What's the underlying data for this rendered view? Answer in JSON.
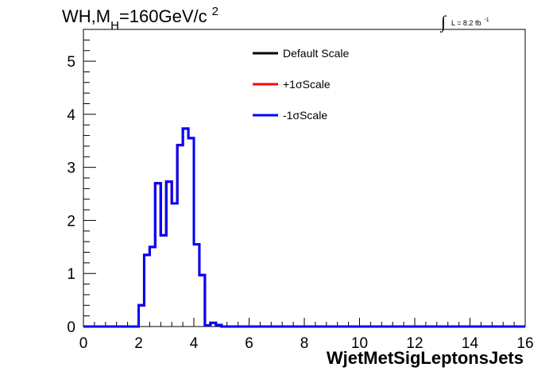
{
  "chart_data": {
    "type": "line",
    "title": {
      "main": "WH,M",
      "sub": "H",
      "rest": "=160GeV/c",
      "sup": "2"
    },
    "lumi_label": {
      "integral": "∫",
      "text": "L = 8.2 fb",
      "sup": "-1"
    },
    "xlabel": "WjetMetSigLeptonsJets",
    "ylabel": "",
    "xlim": [
      0,
      16
    ],
    "ylim": [
      0,
      5.6
    ],
    "x_ticks": [
      0,
      2,
      4,
      6,
      8,
      10,
      12,
      14,
      16
    ],
    "y_ticks": [
      0,
      1,
      2,
      3,
      4,
      5
    ],
    "legend_position": "top-center",
    "bin_edges": [
      0,
      0.2,
      0.4,
      0.6,
      0.8,
      1.0,
      1.2,
      1.4,
      1.6,
      1.8,
      2.0,
      2.2,
      2.4,
      2.6,
      2.8,
      3.0,
      3.2,
      3.4,
      3.6,
      3.8,
      4.0,
      4.2,
      4.4,
      4.6,
      4.8,
      5.0,
      5.2,
      5.4,
      5.6,
      5.8,
      6.0,
      6.2,
      6.4,
      6.6,
      6.8,
      7.0,
      7.2,
      7.4,
      7.6,
      7.8,
      8.0,
      8.2,
      8.4,
      8.6,
      8.8,
      9.0,
      9.2,
      9.4,
      9.6,
      9.8,
      10.0,
      10.2,
      10.4,
      10.6,
      10.8,
      11.0,
      11.2,
      11.4,
      11.6,
      11.8,
      12.0,
      12.2,
      12.4,
      12.6,
      12.8,
      13.0,
      13.2,
      13.4,
      13.6,
      13.8,
      14.0,
      14.2,
      14.4,
      14.6,
      14.8,
      15.0,
      15.2,
      15.4,
      15.6,
      15.8,
      16.0
    ],
    "series": [
      {
        "name": "Default Scale",
        "color": "#000000",
        "values": [
          0,
          0,
          0,
          0,
          0,
          0,
          0,
          0,
          0,
          0,
          0.4,
          1.35,
          1.5,
          2.7,
          1.72,
          2.73,
          2.32,
          3.42,
          3.73,
          3.55,
          1.55,
          0.97,
          0.02,
          0.07,
          0.03,
          0,
          0,
          0,
          0,
          0,
          0,
          0,
          0,
          0,
          0,
          0,
          0,
          0,
          0,
          0,
          0,
          0,
          0,
          0,
          0,
          0,
          0,
          0,
          0,
          0,
          0,
          0,
          0,
          0,
          0,
          0,
          0,
          0,
          0,
          0,
          0,
          0,
          0,
          0,
          0,
          0,
          0,
          0,
          0,
          0,
          0,
          0,
          0,
          0,
          0,
          0,
          0,
          0,
          0,
          0
        ]
      },
      {
        "name": "+1σScale",
        "color": "#ff0000",
        "values": [
          0,
          0,
          0,
          0,
          0,
          0,
          0,
          0,
          0,
          0,
          0.4,
          1.35,
          1.5,
          2.7,
          1.72,
          2.73,
          2.32,
          3.42,
          3.73,
          3.55,
          1.55,
          0.97,
          0.02,
          0.07,
          0.03,
          0,
          0,
          0,
          0,
          0,
          0,
          0,
          0,
          0,
          0,
          0,
          0,
          0,
          0,
          0,
          0,
          0,
          0,
          0,
          0,
          0,
          0,
          0,
          0,
          0,
          0,
          0,
          0,
          0,
          0,
          0,
          0,
          0,
          0,
          0,
          0,
          0,
          0,
          0,
          0,
          0,
          0,
          0,
          0,
          0,
          0,
          0,
          0,
          0,
          0,
          0,
          0,
          0,
          0,
          0
        ]
      },
      {
        "name": "-1σScale",
        "color": "#0000ff",
        "values": [
          0,
          0,
          0,
          0,
          0,
          0,
          0,
          0,
          0,
          0,
          0.4,
          1.35,
          1.5,
          2.7,
          1.72,
          2.73,
          2.32,
          3.42,
          3.73,
          3.55,
          1.55,
          0.97,
          0.02,
          0.07,
          0.03,
          0,
          0,
          0,
          0,
          0,
          0,
          0,
          0,
          0,
          0,
          0,
          0,
          0,
          0,
          0,
          0,
          0,
          0,
          0,
          0,
          0,
          0,
          0,
          0,
          0,
          0,
          0,
          0,
          0,
          0,
          0,
          0,
          0,
          0,
          0,
          0,
          0,
          0,
          0,
          0,
          0,
          0,
          0,
          0,
          0,
          0,
          0,
          0,
          0,
          0,
          0,
          0,
          0,
          0,
          0
        ]
      }
    ]
  }
}
